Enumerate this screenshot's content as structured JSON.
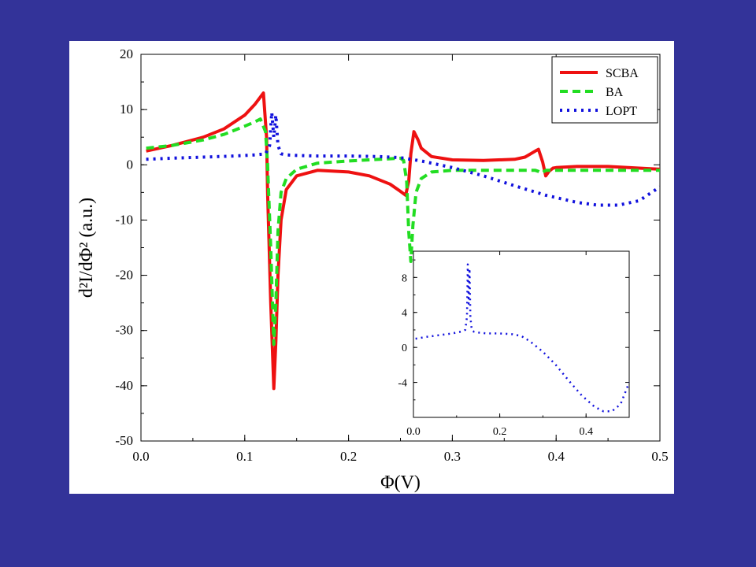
{
  "slide": {
    "background": "#333399",
    "panel_background": "#ffffff"
  },
  "chart_data": [
    {
      "type": "line",
      "title": "",
      "xlabel": "Φ(V)",
      "ylabel": "d²I/dΦ² (a.u.)",
      "xlim": [
        0.0,
        0.5
      ],
      "ylim": [
        -50,
        20
      ],
      "xticks": [
        "0.0",
        "0.1",
        "0.2",
        "0.3",
        "0.4",
        "0.5"
      ],
      "yticks": [
        "20",
        "10",
        "0",
        "-10",
        "-20",
        "-30",
        "-40",
        "-50"
      ],
      "xtick_values": [
        0.0,
        0.1,
        0.2,
        0.3,
        0.4,
        0.5
      ],
      "ytick_values": [
        20,
        10,
        0,
        -10,
        -20,
        -30,
        -40,
        -50
      ],
      "grid": false,
      "legend": "top-right",
      "series": [
        {
          "name": "SCBA",
          "color": "#ee1111",
          "style": "solid",
          "x": [
            0.005,
            0.03,
            0.06,
            0.08,
            0.1,
            0.11,
            0.118,
            0.121,
            0.122,
            0.125,
            0.128,
            0.13,
            0.132,
            0.135,
            0.14,
            0.15,
            0.17,
            0.2,
            0.22,
            0.24,
            0.25,
            0.255,
            0.258,
            0.26,
            0.263,
            0.267,
            0.27,
            0.28,
            0.3,
            0.33,
            0.36,
            0.37,
            0.38,
            0.383,
            0.387,
            0.39,
            0.393,
            0.397,
            0.4,
            0.42,
            0.45,
            0.48,
            0.5
          ],
          "y": [
            2.5,
            3.5,
            5.0,
            6.5,
            9.0,
            11.0,
            13.0,
            5.0,
            -5.0,
            -25.0,
            -40.5,
            -32.0,
            -20.0,
            -10.0,
            -4.5,
            -2.0,
            -1.0,
            -1.3,
            -2.0,
            -3.5,
            -4.8,
            -5.5,
            -3.0,
            2.0,
            6.0,
            4.5,
            3.0,
            1.5,
            0.9,
            0.8,
            1.0,
            1.4,
            2.5,
            2.8,
            0.5,
            -2.0,
            -1.2,
            -0.6,
            -0.5,
            -0.3,
            -0.3,
            -0.6,
            -0.8
          ]
        },
        {
          "name": "BA",
          "color": "#22dd22",
          "style": "dashed",
          "x": [
            0.005,
            0.03,
            0.06,
            0.08,
            0.1,
            0.11,
            0.115,
            0.12,
            0.122,
            0.125,
            0.128,
            0.13,
            0.132,
            0.135,
            0.14,
            0.15,
            0.17,
            0.2,
            0.22,
            0.24,
            0.25,
            0.253,
            0.256,
            0.258,
            0.26,
            0.262,
            0.265,
            0.27,
            0.28,
            0.3,
            0.35,
            0.38,
            0.383,
            0.386,
            0.39,
            0.42,
            0.45,
            0.5
          ],
          "y": [
            3.0,
            3.5,
            4.5,
            5.5,
            7.0,
            7.8,
            8.3,
            6.0,
            0.0,
            -15.0,
            -32.5,
            -25.0,
            -12.0,
            -5.0,
            -2.5,
            -0.8,
            0.3,
            0.7,
            0.9,
            1.1,
            1.2,
            0.8,
            -3.0,
            -12.0,
            -17.5,
            -11.0,
            -5.0,
            -2.5,
            -1.3,
            -1.0,
            -1.0,
            -1.0,
            -1.2,
            -1.5,
            -1.0,
            -1.0,
            -1.0,
            -1.0
          ]
        },
        {
          "name": "LOPT",
          "color": "#1111dd",
          "style": "dotted",
          "x": [
            0.005,
            0.03,
            0.06,
            0.09,
            0.11,
            0.12,
            0.124,
            0.126,
            0.128,
            0.13,
            0.132,
            0.135,
            0.14,
            0.15,
            0.17,
            0.2,
            0.23,
            0.25,
            0.27,
            0.3,
            0.33,
            0.36,
            0.39,
            0.42,
            0.44,
            0.46,
            0.48,
            0.5
          ],
          "y": [
            1.0,
            1.2,
            1.4,
            1.6,
            1.8,
            2.0,
            3.5,
            9.5,
            5.0,
            9.0,
            3.5,
            2.0,
            1.8,
            1.7,
            1.6,
            1.6,
            1.5,
            1.3,
            0.7,
            -0.5,
            -2.0,
            -3.8,
            -5.5,
            -6.8,
            -7.3,
            -7.3,
            -6.5,
            -4.0
          ]
        }
      ]
    },
    {
      "type": "line",
      "title": "",
      "xlabel": "",
      "ylabel": "",
      "xlim": [
        0.0,
        0.5
      ],
      "ylim": [
        -8,
        11
      ],
      "xticks": [
        "0.0",
        "0.2",
        "0.4"
      ],
      "yticks": [
        "8",
        "4",
        "0",
        "-4"
      ],
      "xtick_values": [
        0.0,
        0.2,
        0.4
      ],
      "ytick_values": [
        8,
        4,
        0,
        -4
      ],
      "grid": false,
      "legend": "none",
      "series": [
        {
          "color": "#1111dd",
          "style": "dotted",
          "x": [
            0.005,
            0.03,
            0.06,
            0.09,
            0.11,
            0.12,
            0.124,
            0.126,
            0.128,
            0.13,
            0.132,
            0.135,
            0.14,
            0.15,
            0.17,
            0.2,
            0.23,
            0.25,
            0.27,
            0.3,
            0.33,
            0.36,
            0.39,
            0.42,
            0.44,
            0.46,
            0.48,
            0.5
          ],
          "y": [
            1.0,
            1.2,
            1.4,
            1.6,
            1.8,
            2.0,
            3.5,
            9.5,
            5.0,
            9.0,
            3.5,
            2.0,
            1.8,
            1.7,
            1.6,
            1.6,
            1.5,
            1.3,
            0.7,
            -0.5,
            -2.0,
            -3.8,
            -5.5,
            -6.8,
            -7.3,
            -7.3,
            -6.5,
            -4.0
          ]
        }
      ]
    }
  ]
}
